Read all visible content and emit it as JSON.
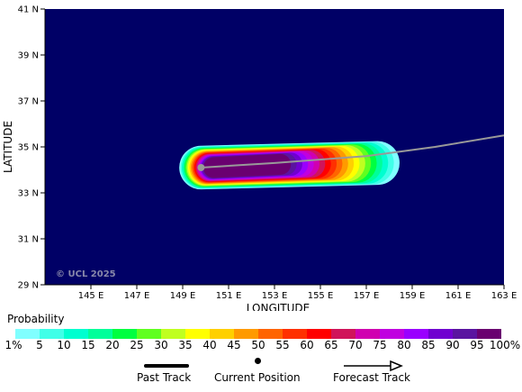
{
  "map": {
    "type": "probability-map",
    "xlabel": "LONGITUDE",
    "ylabel": "LATITUDE",
    "lon_range": [
      143,
      163
    ],
    "lat_range": [
      29,
      41
    ],
    "lon_ticks": [
      "145 E",
      "147 E",
      "149 E",
      "151 E",
      "153 E",
      "155 E",
      "157 E",
      "159 E",
      "161 E",
      "163 E"
    ],
    "lon_tick_values": [
      145,
      147,
      149,
      151,
      153,
      155,
      157,
      159,
      161,
      163
    ],
    "lat_ticks": [
      "29 N",
      "31 N",
      "33 N",
      "35 N",
      "37 N",
      "39 N",
      "41 N"
    ],
    "lat_tick_values": [
      29,
      31,
      33,
      35,
      37,
      39,
      41
    ],
    "background_color": "#000066",
    "copyright": "© UCL 2025",
    "current_position": {
      "lon": 149.8,
      "lat": 34.1
    },
    "forecast_track": [
      {
        "lon": 149.8,
        "lat": 34.1
      },
      {
        "lon": 153.0,
        "lat": 34.3
      },
      {
        "lon": 157.0,
        "lat": 34.6
      },
      {
        "lon": 160.0,
        "lat": 35.0
      },
      {
        "lon": 163.0,
        "lat": 35.5
      }
    ],
    "track_color": "#999999",
    "probability_field": {
      "start": {
        "lon": 149.8,
        "lat": 34.1
      },
      "end": {
        "lon": 157.5,
        "lat": 34.3
      },
      "outer_half_width_deg": 0.95,
      "inner_half_width_deg": 0.45
    }
  },
  "legend": {
    "title": "Probability",
    "labels": [
      "1%",
      "5",
      "10",
      "15",
      "20",
      "25",
      "30",
      "35",
      "40",
      "45",
      "50",
      "55",
      "60",
      "65",
      "70",
      "75",
      "80",
      "85",
      "90",
      "95",
      "100%"
    ],
    "colors": [
      "#80ffff",
      "#40ffe8",
      "#00ffd0",
      "#00ff9a",
      "#00ff40",
      "#60ff20",
      "#c0ff20",
      "#ffff00",
      "#ffd000",
      "#ff9a00",
      "#ff6400",
      "#ff3000",
      "#ff0000",
      "#d0145a",
      "#d000b0",
      "#c000e0",
      "#9a00ff",
      "#7000d0",
      "#5a14a0",
      "#6a0070"
    ]
  },
  "keys": {
    "past_track": "Past Track",
    "current_position": "Current Position",
    "forecast_track": "Forecast Track"
  }
}
